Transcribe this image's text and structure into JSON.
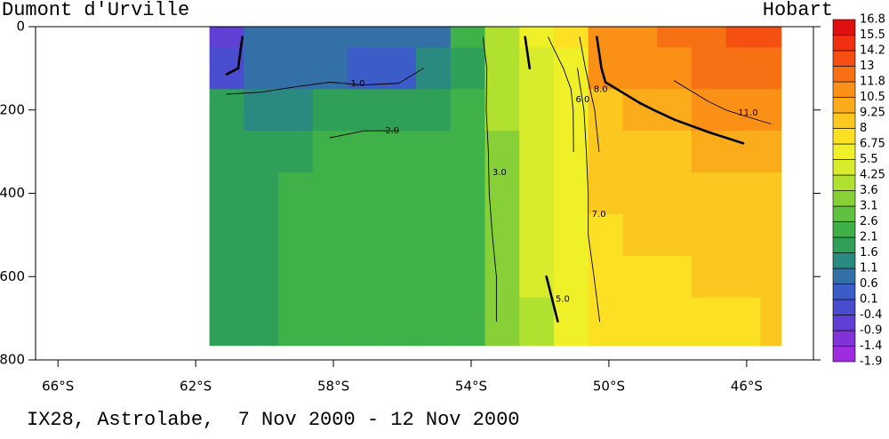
{
  "chart_data": {
    "type": "heatmap",
    "title": "IX28, Astrolabe,  7 Nov 2000 - 12 Nov 2000",
    "annotations": {
      "left": "Dumont d'Urville",
      "right": "Hobart"
    },
    "xlim": [
      -66.65,
      -44.06
    ],
    "ylim": [
      0,
      800
    ],
    "y_inverted": true,
    "xticks": [
      {
        "value": -66,
        "label": "66°S"
      },
      {
        "value": -62,
        "label": "62°S"
      },
      {
        "value": -58,
        "label": "58°S"
      },
      {
        "value": -54,
        "label": "54°S"
      },
      {
        "value": -50,
        "label": "50°S"
      },
      {
        "value": -46,
        "label": "46°S"
      }
    ],
    "yticks": [
      0,
      200,
      400,
      600,
      800
    ],
    "x_edges": [
      -61.6,
      -60.6,
      -59.6,
      -58.6,
      -57.6,
      -56.6,
      -55.6,
      -54.6,
      -53.6,
      -52.6,
      -51.6,
      -50.6,
      -49.6,
      -48.6,
      -47.6,
      -46.6,
      -45.6,
      -45.0
    ],
    "y_edges": [
      0,
      50,
      150,
      250,
      350,
      450,
      550,
      650,
      765
    ],
    "values": [
      [
        -0.5,
        -0.3,
        1.8,
        2.0,
        2.0,
        2.0,
        2.0,
        1.9
      ],
      [
        0.6,
        0.6,
        1.3,
        2.0,
        2.0,
        2.0,
        2.0,
        2.0
      ],
      [
        0.6,
        0.6,
        1.5,
        2.0,
        2.1,
        2.1,
        2.1,
        2.1
      ],
      [
        0.7,
        0.6,
        1.8,
        2.1,
        2.1,
        2.1,
        2.1,
        2.1
      ],
      [
        0.8,
        0.4,
        1.9,
        2.1,
        2.1,
        2.1,
        2.1,
        2.1
      ],
      [
        0.8,
        0.5,
        1.9,
        2.1,
        2.1,
        2.1,
        2.1,
        2.1
      ],
      [
        1.0,
        1.2,
        2.0,
        2.1,
        2.1,
        2.2,
        2.2,
        2.2
      ],
      [
        2.2,
        2.0,
        2.3,
        2.4,
        2.5,
        2.5,
        2.5,
        2.5
      ],
      [
        4.0,
        3.8,
        3.6,
        3.4,
        3.3,
        3.2,
        3.1,
        3.1
      ],
      [
        5.5,
        5.3,
        5.0,
        5.0,
        5.1,
        5.0,
        4.6,
        4.2
      ],
      [
        7.0,
        6.2,
        5.8,
        5.8,
        6.0,
        6.2,
        6.0,
        5.5
      ],
      [
        11.0,
        10.5,
        9.0,
        8.5,
        8.0,
        7.8,
        7.5,
        7.3
      ],
      [
        11.5,
        11.0,
        9.8,
        8.8,
        8.3,
        8.0,
        7.8,
        7.6
      ],
      [
        12.0,
        11.3,
        10.3,
        9.0,
        8.5,
        8.2,
        7.9,
        7.7
      ],
      [
        12.5,
        11.8,
        10.8,
        9.3,
        8.7,
        8.3,
        8.0,
        7.8
      ],
      [
        13.2,
        12.3,
        11.2,
        9.7,
        9.0,
        8.5,
        8.2,
        7.9
      ],
      [
        13.5,
        12.5,
        11.5,
        10.0,
        9.1,
        8.6,
        8.3,
        8.0
      ]
    ],
    "colorbar": {
      "levels": [
        -1.9,
        -1.4,
        -0.9,
        -0.4,
        0.1,
        0.6,
        1.1,
        1.6,
        2.1,
        2.6,
        3.1,
        3.6,
        4.25,
        5.5,
        6.75,
        8,
        9.25,
        10.5,
        11.8,
        13,
        14.2,
        15.5,
        16.8
      ],
      "colors": [
        "#a02ce0",
        "#8034d8",
        "#6040d4",
        "#4a4cd0",
        "#3c5cc8",
        "#3470a8",
        "#2a8a80",
        "#30a058",
        "#40b048",
        "#60c040",
        "#88d038",
        "#b0e030",
        "#d8ec2c",
        "#f0f028",
        "#fce024",
        "#fcc820",
        "#fbac1a",
        "#fa9016",
        "#f87014",
        "#f55012",
        "#f03010",
        "#e01010"
      ]
    },
    "contours": [
      {
        "value": 0,
        "bold": true
      },
      {
        "value": 1,
        "label": "1.0"
      },
      {
        "value": 2,
        "label": "2.0"
      },
      {
        "value": 3,
        "label": "3.0"
      },
      {
        "value": 5,
        "label": "5.0",
        "bold": true
      },
      {
        "value": 6,
        "label": "6.0"
      },
      {
        "value": 7,
        "label": "7.0"
      },
      {
        "value": 8,
        "label": "8.0"
      },
      {
        "value": 10,
        "bold": true
      },
      {
        "value": 11,
        "label": "11.0"
      }
    ]
  }
}
